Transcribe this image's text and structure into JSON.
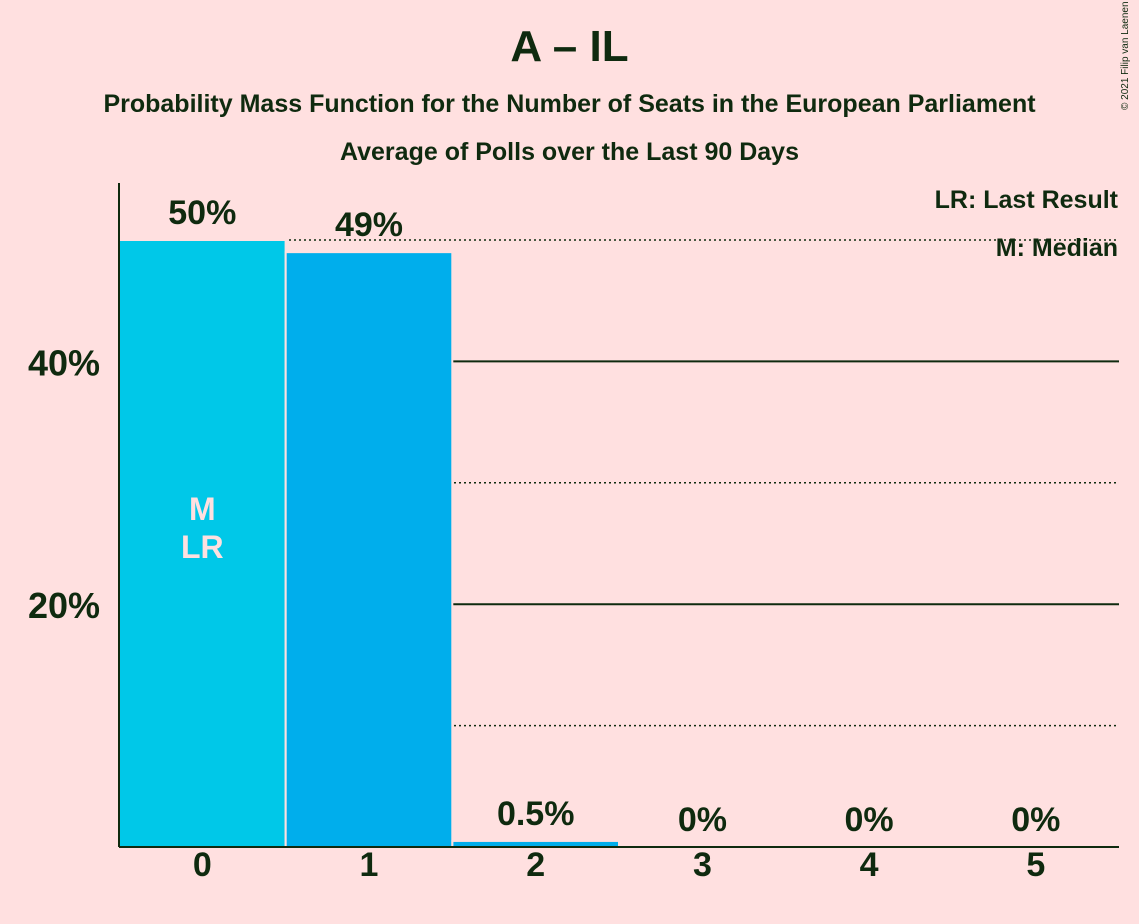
{
  "title": "A – IL",
  "subtitle": "Probability Mass Function for the Number of Seats in the European Parliament",
  "subtitle2": "Average of Polls over the Last 90 Days",
  "copyright": "© 2021 Filip van Laenen",
  "legend": {
    "last_result": "LR: Last Result",
    "median": "M: Median"
  },
  "colors": {
    "background": "#FFE0E0",
    "bar_primary": "#00C8E8",
    "bar_secondary": "#00AEEC",
    "text": "#0F2A0F",
    "marker_text": "#FFE0E0"
  },
  "chart_data": {
    "type": "bar",
    "categories": [
      "0",
      "1",
      "2",
      "3",
      "4",
      "5"
    ],
    "values": [
      50,
      49,
      0.5,
      0,
      0,
      0
    ],
    "value_labels": [
      "50%",
      "49%",
      "0.5%",
      "0%",
      "0%",
      "0%"
    ],
    "y_ticks": [
      {
        "value": 20,
        "label": "20%"
      },
      {
        "value": 40,
        "label": "40%"
      }
    ],
    "ylim": [
      0,
      54.6
    ],
    "grid": {
      "solid": [
        20,
        40
      ],
      "dotted": [
        10,
        30,
        50
      ]
    },
    "bar_markers": [
      {
        "category": "0",
        "lines": [
          "M",
          "LR"
        ]
      }
    ],
    "legend_position": "top-right"
  }
}
